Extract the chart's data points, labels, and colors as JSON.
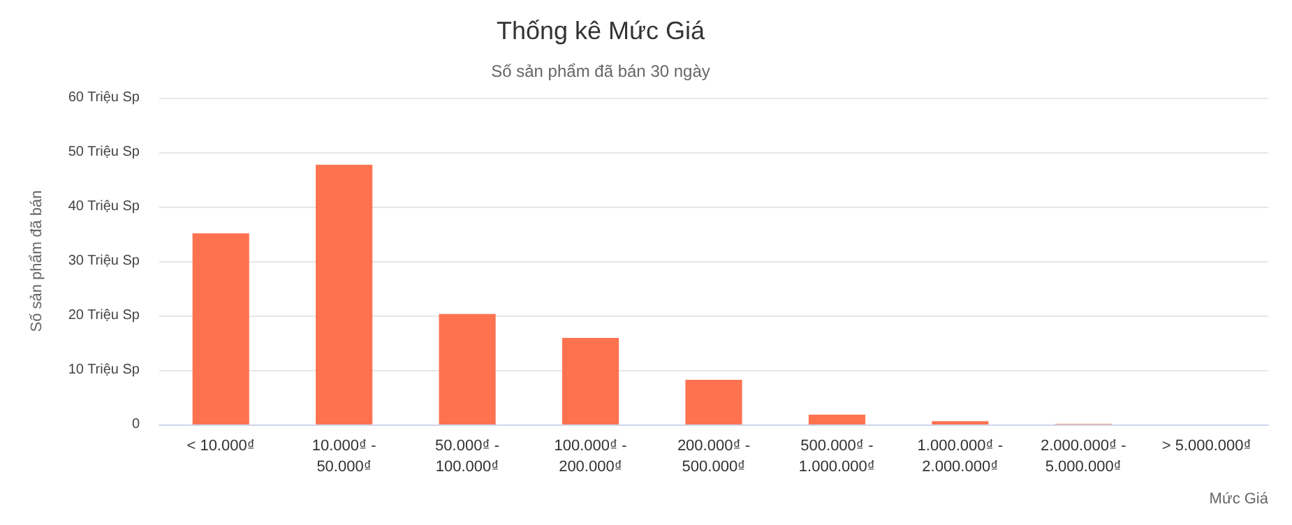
{
  "chart_data": {
    "type": "bar",
    "title": "Thống kê Mức Giá",
    "subtitle": "Số sản phẩm đã bán 30 ngày",
    "xlabel": "Mức Giá",
    "ylabel": "Số sản phẩm đã bán",
    "categories": [
      "< 10.000₫",
      "10.000₫ - 50.000₫",
      "50.000₫ - 100.000₫",
      "100.000₫ - 200.000₫",
      "200.000₫ - 500.000₫",
      "500.000₫ - 1.000.000₫",
      "1.000.000₫ - 2.000.000₫",
      "2.000.000₫ - 5.000.000₫",
      "> 5.000.000₫"
    ],
    "values": [
      35.1,
      47.7,
      20.3,
      15.9,
      8.2,
      1.8,
      0.6,
      0.1,
      0
    ],
    "color": "#ff7250",
    "ylim": [
      0,
      60
    ],
    "yticks": [
      0,
      {
        "value": 10,
        "label": "10 Triệu Sp"
      },
      {
        "value": 20,
        "label": "20 Triệu Sp"
      },
      {
        "value": 30,
        "label": "30 Triệu Sp"
      },
      {
        "value": 40,
        "label": "40 Triệu Sp"
      },
      {
        "value": 50,
        "label": "50 Triệu Sp"
      },
      {
        "value": 60,
        "label": "60 Triệu Sp"
      }
    ],
    "grid": "y"
  }
}
